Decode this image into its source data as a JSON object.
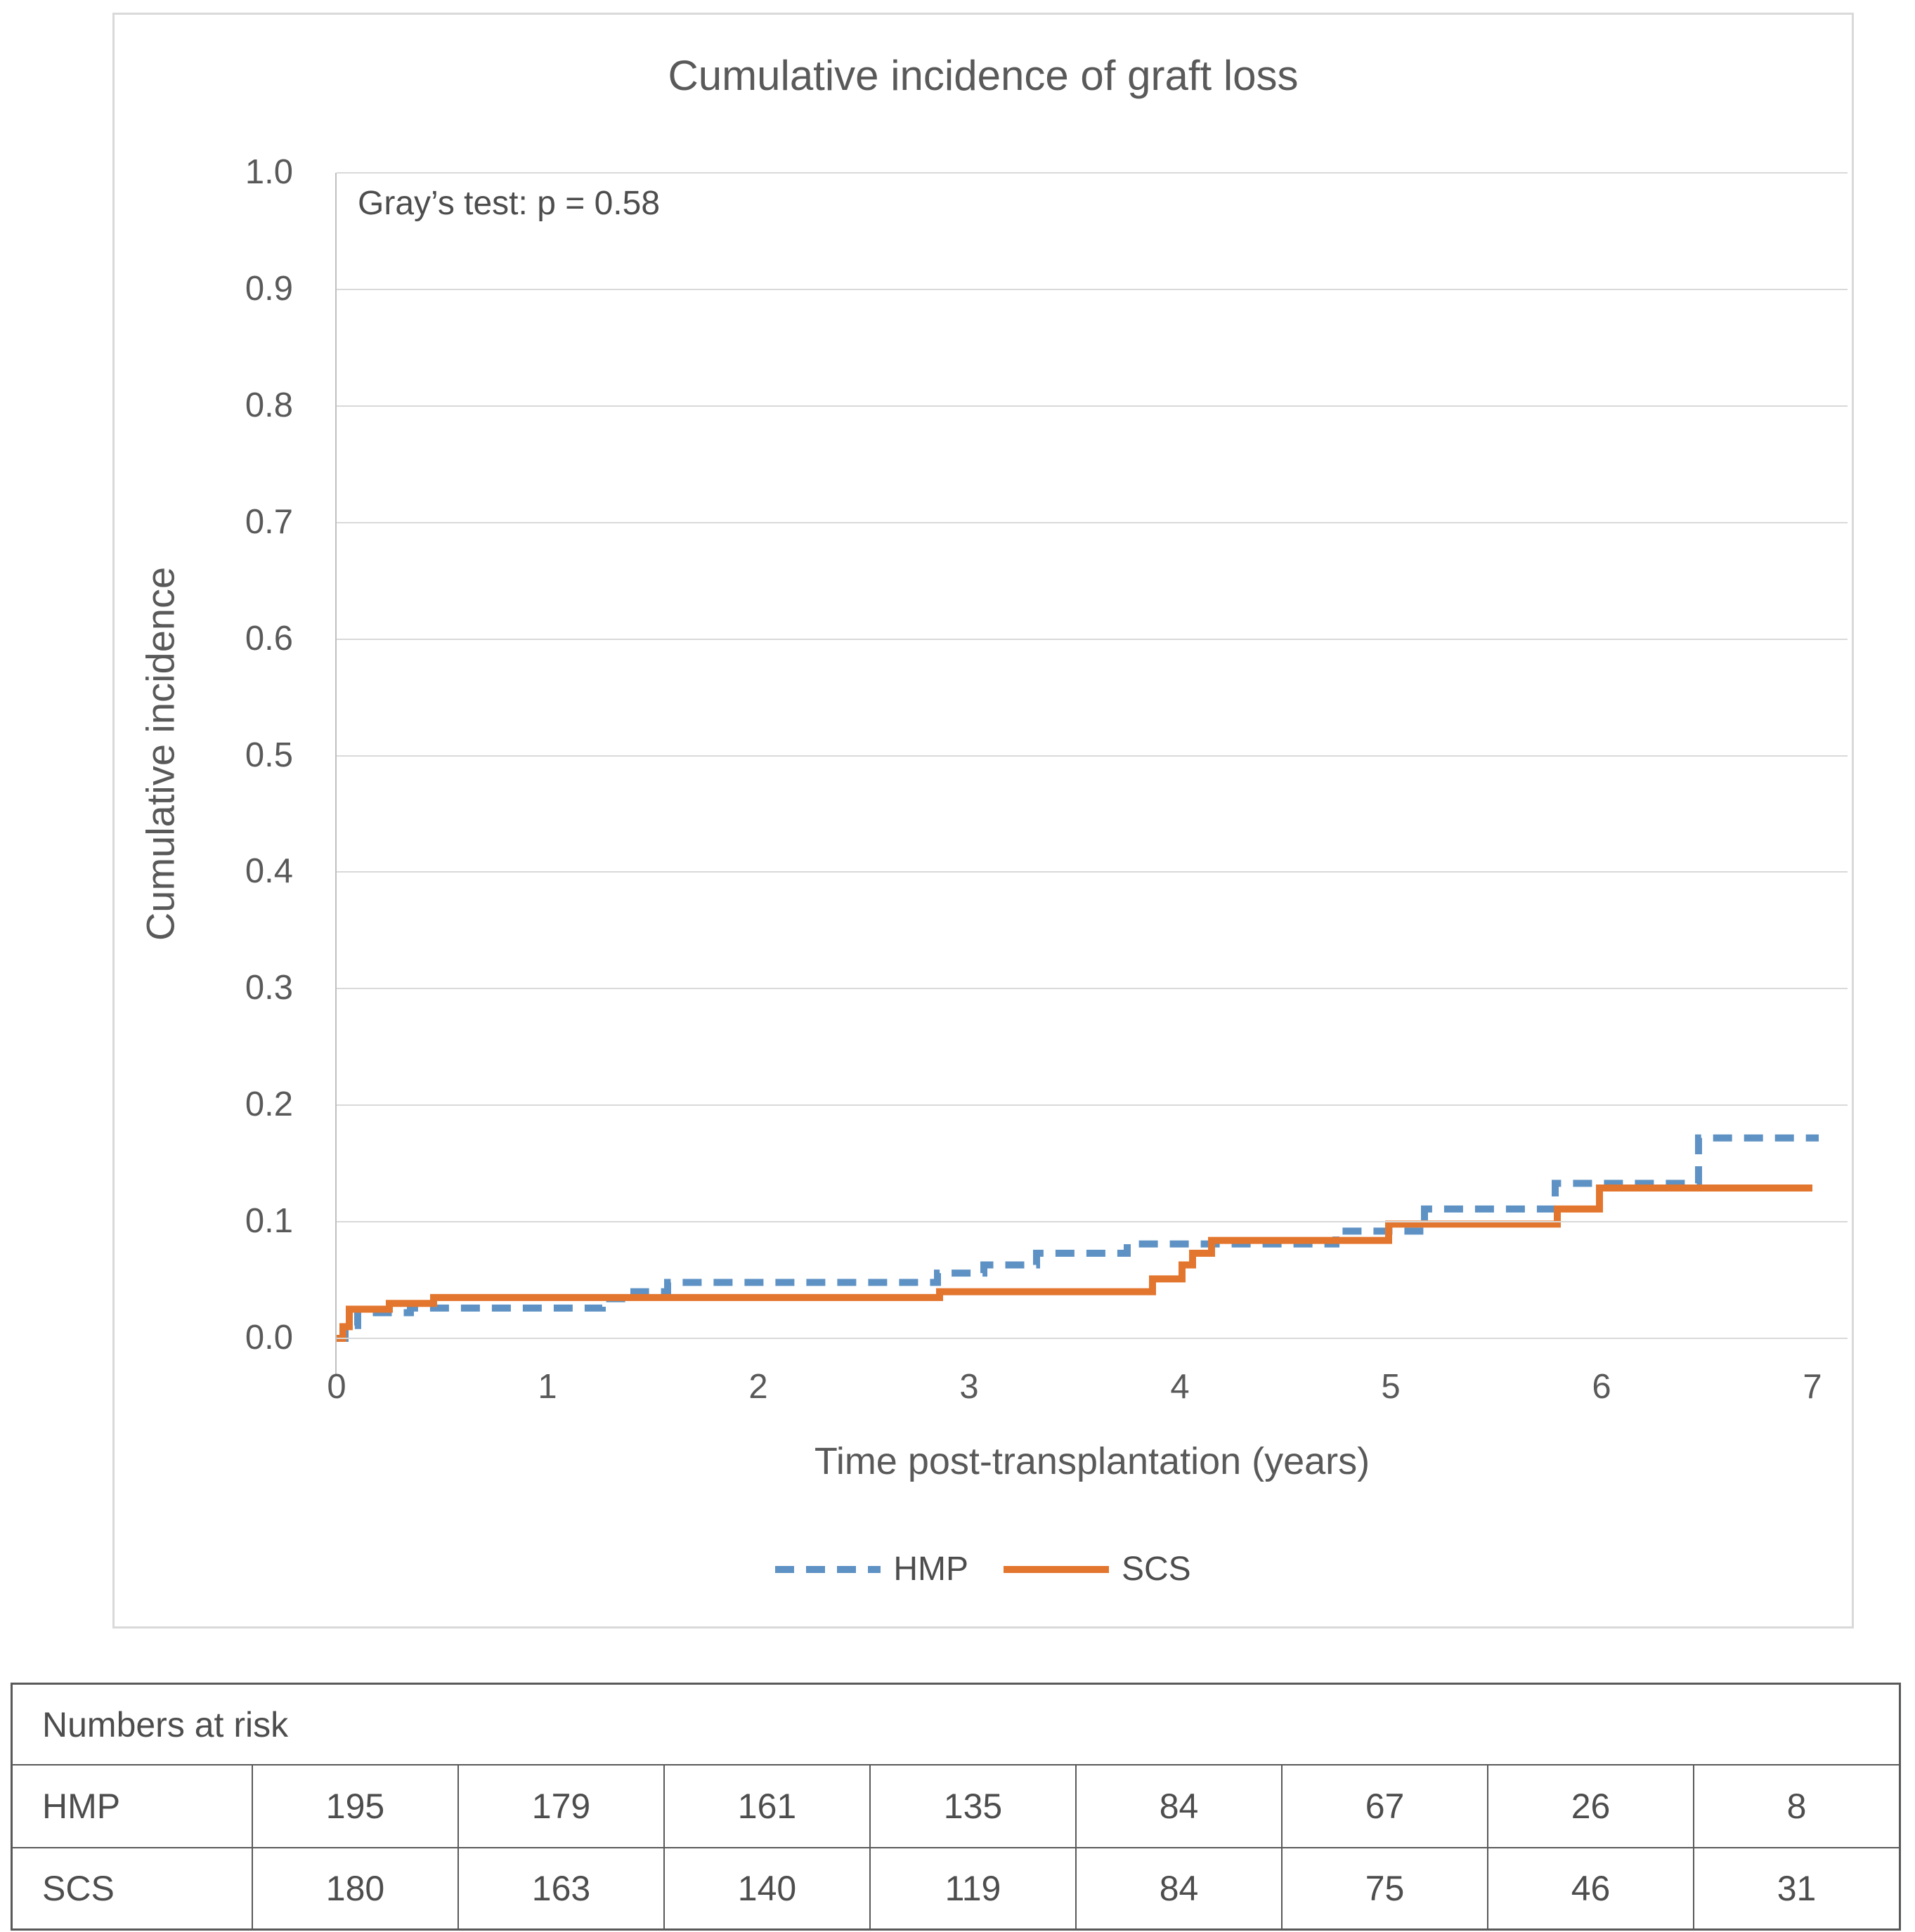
{
  "chart": {
    "title": "Cumulative incidence of graft loss",
    "annotation": "Gray’s test: p = 0.58",
    "x_axis": {
      "label": "Time post-transplantation (years)",
      "min": 0,
      "max": 7,
      "step": 1,
      "ticks": [
        "0",
        "1",
        "2",
        "3",
        "4",
        "5",
        "6",
        "7"
      ]
    },
    "y_axis": {
      "label": "Cumulative incidence",
      "min": 0.0,
      "max": 1.0,
      "step": 0.1,
      "ticks": [
        "1.0",
        "0.9",
        "0.8",
        "0.7",
        "0.6",
        "0.5",
        "0.4",
        "0.3",
        "0.2",
        "0.1",
        "0.0"
      ]
    },
    "legend": [
      {
        "name": "HMP",
        "style": "dashed",
        "color": "#5e92c4"
      },
      {
        "name": "SCS",
        "style": "solid",
        "color": "#e3762f"
      }
    ],
    "colors": {
      "grid": "#d9d9d9",
      "axis": "#bfbfbf",
      "text": "#595959"
    }
  },
  "chart_data": {
    "type": "line",
    "subtype": "step-function-cumulative-incidence",
    "title": "Cumulative incidence of graft loss",
    "xlabel": "Time post-transplantation (years)",
    "ylabel": "Cumulative incidence",
    "xlim": [
      0,
      7
    ],
    "ylim": [
      0.0,
      1.0
    ],
    "grid": "horizontal",
    "legend_position": "bottom",
    "annotation": "Gray’s test: p = 0.58",
    "series": [
      {
        "name": "HMP",
        "color": "#5e92c4",
        "dashed": true,
        "step_points": [
          [
            0,
            0
          ],
          [
            0.04,
            0.011
          ],
          [
            0.1,
            0.022
          ],
          [
            0.35,
            0.026
          ],
          [
            1.26,
            0.034
          ],
          [
            1.41,
            0.04
          ],
          [
            1.57,
            0.048
          ],
          [
            2.85,
            0.056
          ],
          [
            3.07,
            0.063
          ],
          [
            3.32,
            0.073
          ],
          [
            3.75,
            0.081
          ],
          [
            4.74,
            0.092
          ],
          [
            5.16,
            0.111
          ],
          [
            5.78,
            0.133
          ],
          [
            6.46,
            0.172
          ]
        ],
        "end_x": 7.03
      },
      {
        "name": "SCS",
        "color": "#e3762f",
        "dashed": false,
        "step_points": [
          [
            0,
            0
          ],
          [
            0.03,
            0.01
          ],
          [
            0.06,
            0.025
          ],
          [
            0.25,
            0.03
          ],
          [
            0.46,
            0.035
          ],
          [
            2.86,
            0.04
          ],
          [
            3.87,
            0.051
          ],
          [
            4.01,
            0.063
          ],
          [
            4.06,
            0.073
          ],
          [
            4.15,
            0.084
          ],
          [
            4.99,
            0.098
          ],
          [
            5.79,
            0.111
          ],
          [
            5.99,
            0.129
          ]
        ],
        "end_x": 7.0
      }
    ]
  },
  "table": {
    "header": "Numbers at risk",
    "rows": [
      {
        "label": "HMP",
        "values": [
          "195",
          "179",
          "161",
          "135",
          "84",
          "67",
          "26",
          "8"
        ]
      },
      {
        "label": "SCS",
        "values": [
          "180",
          "163",
          "140",
          "119",
          "84",
          "75",
          "46",
          "31"
        ]
      }
    ]
  }
}
